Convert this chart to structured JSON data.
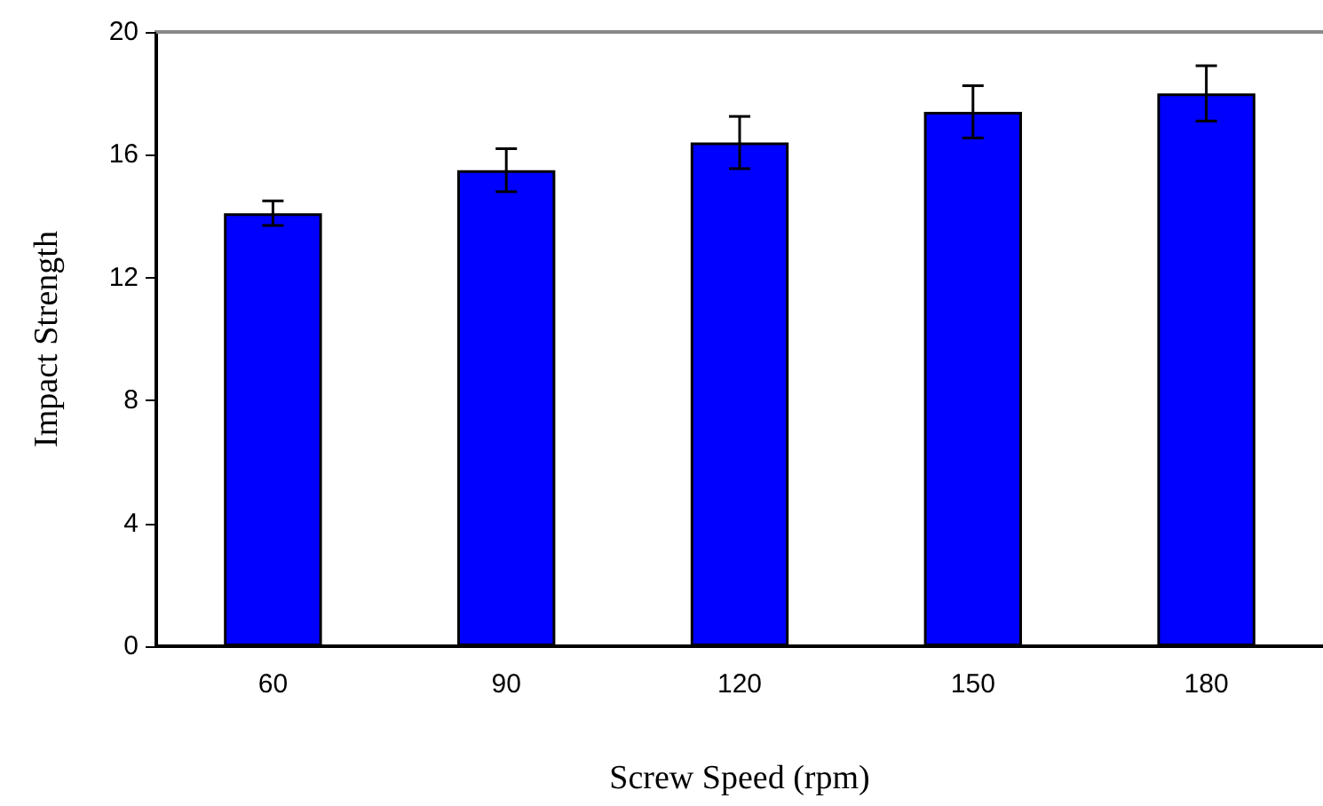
{
  "chart_data": {
    "type": "bar",
    "xlabel": "Screw Speed (rpm)",
    "ylabel": "Impact Strength",
    "categories": [
      "60",
      "90",
      "120",
      "150",
      "180"
    ],
    "values": [
      14.1,
      15.5,
      16.4,
      17.4,
      18.0
    ],
    "errors": [
      0.4,
      0.7,
      0.85,
      0.85,
      0.9
    ],
    "color": "#0000ff",
    "ylim": [
      0,
      20
    ],
    "yticks": [
      0,
      4,
      8,
      12,
      16,
      20
    ],
    "grid": false
  }
}
